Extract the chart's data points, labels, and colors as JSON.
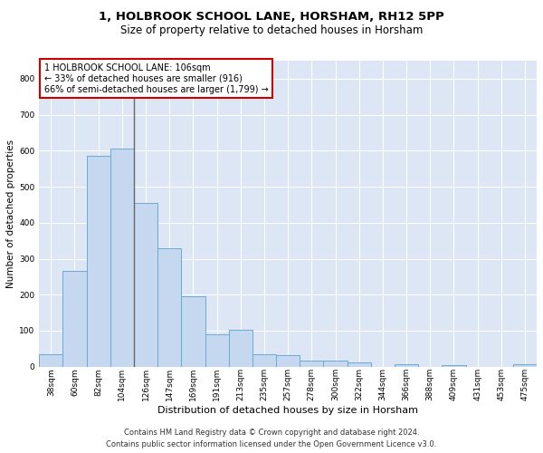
{
  "title": "1, HOLBROOK SCHOOL LANE, HORSHAM, RH12 5PP",
  "subtitle": "Size of property relative to detached houses in Horsham",
  "xlabel": "Distribution of detached houses by size in Horsham",
  "ylabel": "Number of detached properties",
  "categories": [
    "38sqm",
    "60sqm",
    "82sqm",
    "104sqm",
    "126sqm",
    "147sqm",
    "169sqm",
    "191sqm",
    "213sqm",
    "235sqm",
    "257sqm",
    "278sqm",
    "300sqm",
    "322sqm",
    "344sqm",
    "366sqm",
    "388sqm",
    "409sqm",
    "431sqm",
    "453sqm",
    "475sqm"
  ],
  "values": [
    35,
    265,
    585,
    605,
    455,
    330,
    195,
    90,
    103,
    35,
    32,
    18,
    16,
    12,
    0,
    7,
    0,
    5,
    0,
    0,
    8
  ],
  "bar_color": "#c5d8ef",
  "bar_edge_color": "#6aaad4",
  "subject_bar_index": 3,
  "subject_line_color": "#666666",
  "annotation_text": "1 HOLBROOK SCHOOL LANE: 106sqm\n← 33% of detached houses are smaller (916)\n66% of semi-detached houses are larger (1,799) →",
  "annotation_box_color": "#ffffff",
  "annotation_box_edge_color": "#cc0000",
  "ylim": [
    0,
    850
  ],
  "yticks": [
    0,
    100,
    200,
    300,
    400,
    500,
    600,
    700,
    800
  ],
  "plot_bg_color": "#dce6f5",
  "footer_line1": "Contains HM Land Registry data © Crown copyright and database right 2024.",
  "footer_line2": "Contains public sector information licensed under the Open Government Licence v3.0.",
  "title_fontsize": 9.5,
  "subtitle_fontsize": 8.5,
  "xlabel_fontsize": 8,
  "ylabel_fontsize": 7.5,
  "tick_fontsize": 6.5,
  "annotation_fontsize": 7,
  "footer_fontsize": 6
}
